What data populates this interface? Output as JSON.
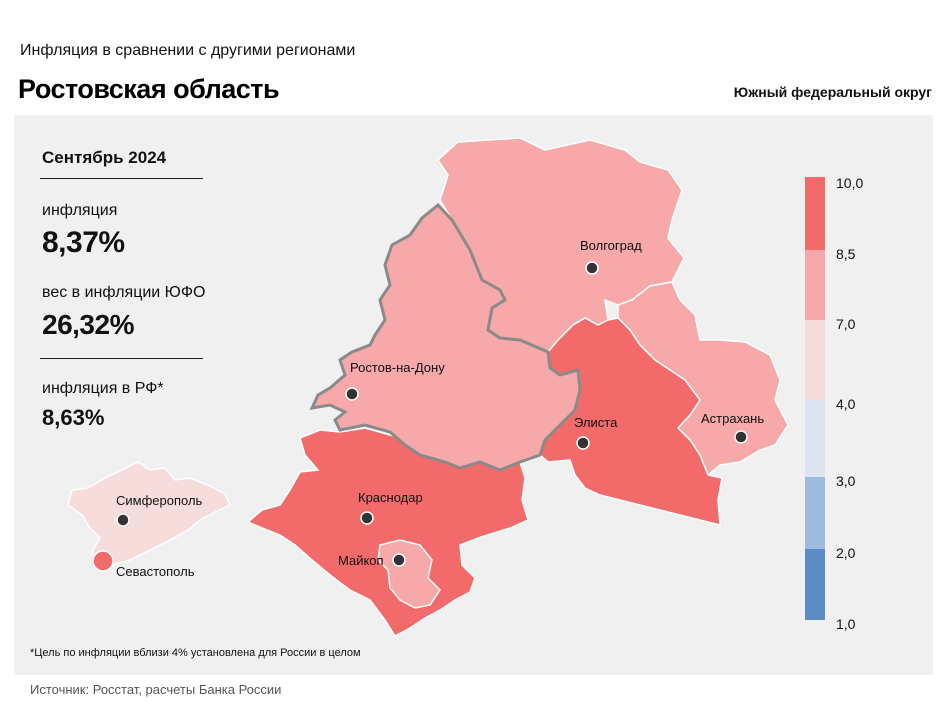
{
  "header": {
    "subtitle": "Инфляция в сравнении с другими регионами",
    "title": "Ростовская область",
    "district": "Южный федеральный округ"
  },
  "info": {
    "period": "Сентябрь 2024",
    "inflation_label": "инфляция",
    "inflation_value": "8,37%",
    "weight_label": "вес в инфляции ЮФО",
    "weight_value": "26,32%",
    "rf_label": "инфляция в РФ*",
    "rf_value": "8,63%"
  },
  "cities": {
    "volgograd": "Волгоград",
    "rostov": "Ростов-на-Дону",
    "elista": "Элиста",
    "astrakhan": "Астрахань",
    "krasnodar": "Краснодар",
    "maykop": "Майкоп",
    "simferopol": "Симферополь",
    "sevastopol": "Севастополь"
  },
  "legend": {
    "ticks": [
      "10,0",
      "8,5",
      "7,0",
      "4,0",
      "3,0",
      "2,0",
      "1,0"
    ],
    "colors": [
      "#f26a6a",
      "#f7a8a8",
      "#f7dcdc",
      "#dde4f2",
      "#9dbbdf",
      "#5b8cc6"
    ]
  },
  "footer": {
    "note": "*Цель по инфляции вблизи 4% установлена для России в целом",
    "source": "Источник: Росстат, расчеты Банка России"
  }
}
